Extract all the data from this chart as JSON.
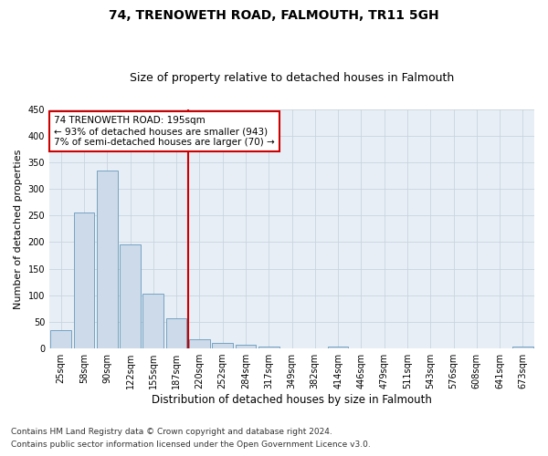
{
  "title": "74, TRENOWETH ROAD, FALMOUTH, TR11 5GH",
  "subtitle": "Size of property relative to detached houses in Falmouth",
  "xlabel": "Distribution of detached houses by size in Falmouth",
  "ylabel": "Number of detached properties",
  "bar_labels": [
    "25sqm",
    "58sqm",
    "90sqm",
    "122sqm",
    "155sqm",
    "187sqm",
    "220sqm",
    "252sqm",
    "284sqm",
    "317sqm",
    "349sqm",
    "382sqm",
    "414sqm",
    "446sqm",
    "479sqm",
    "511sqm",
    "543sqm",
    "576sqm",
    "608sqm",
    "641sqm",
    "673sqm"
  ],
  "bar_values": [
    35,
    255,
    335,
    195,
    103,
    57,
    18,
    10,
    7,
    4,
    0,
    0,
    4,
    0,
    0,
    0,
    0,
    0,
    0,
    0,
    3
  ],
  "bar_color": "#ccdaea",
  "bar_edge_color": "#6699bb",
  "vline_color": "#cc0000",
  "vline_x_index": 5.5,
  "annotation_text": "74 TRENOWETH ROAD: 195sqm\n← 93% of detached houses are smaller (943)\n7% of semi-detached houses are larger (70) →",
  "annotation_box_color": "#ffffff",
  "annotation_box_edge": "#cc0000",
  "ylim": [
    0,
    450
  ],
  "yticks": [
    0,
    50,
    100,
    150,
    200,
    250,
    300,
    350,
    400,
    450
  ],
  "footnote1": "Contains HM Land Registry data © Crown copyright and database right 2024.",
  "footnote2": "Contains public sector information licensed under the Open Government Licence v3.0.",
  "bg_color": "#ffffff",
  "plot_bg_color": "#e8eef5",
  "grid_color": "#c8d4e0",
  "title_fontsize": 10,
  "subtitle_fontsize": 9,
  "ylabel_fontsize": 8,
  "xlabel_fontsize": 8.5,
  "tick_fontsize": 7,
  "annotation_fontsize": 7.5,
  "footnote_fontsize": 6.5
}
